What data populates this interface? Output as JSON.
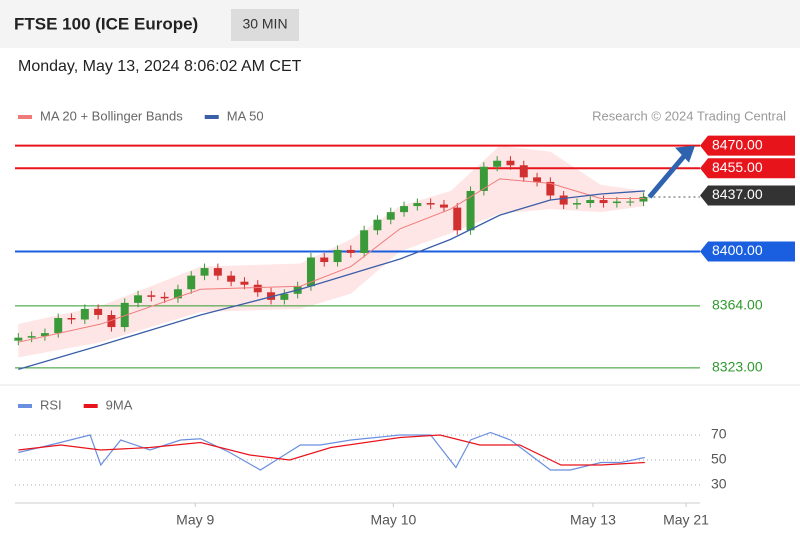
{
  "header": {
    "title": "FTSE 100 (ICE Europe)",
    "interval": "30 MIN",
    "datetime": "Monday, May 13, 2024 8:06:02 AM CET",
    "credit": "Research © 2024 Trading Central"
  },
  "chart_data": [
    {
      "type": "candlestick",
      "xlim": [
        -0.25,
        51.25
      ],
      "ylim": [
        8315,
        8477
      ],
      "up_color": "#3a9a3a",
      "down_color": "#d03030",
      "open": [
        8341,
        8343,
        8344,
        8346,
        8356,
        8355,
        8362,
        8358,
        8350,
        8366,
        8371,
        8370,
        8369,
        8375,
        8384,
        8389,
        8384,
        8380,
        8378,
        8373,
        8368,
        8372,
        8377,
        8396,
        8393,
        8401,
        8399,
        8414,
        8421,
        8426,
        8430,
        8432,
        8431,
        8429,
        8414,
        8440,
        8456,
        8460,
        8457,
        8449,
        8446,
        8437,
        8431,
        8432,
        8434,
        8432,
        8433,
        8433
      ],
      "high": [
        8346,
        8347,
        8349,
        8359,
        8359,
        8365,
        8365,
        8361,
        8369,
        8374,
        8374,
        8373,
        8378,
        8387,
        8392,
        8392,
        8387,
        8383,
        8381,
        8376,
        8375,
        8380,
        8399,
        8399,
        8404,
        8404,
        8417,
        8424,
        8429,
        8433,
        8435,
        8435,
        8434,
        8432,
        8443,
        8459,
        8463,
        8463,
        8460,
        8452,
        8449,
        8440,
        8435,
        8437,
        8437,
        8436,
        8436,
        8439
      ],
      "low": [
        8338,
        8340,
        8341,
        8343,
        8352,
        8352,
        8355,
        8347,
        8347,
        8363,
        8367,
        8366,
        8366,
        8372,
        8381,
        8381,
        8377,
        8375,
        8370,
        8365,
        8365,
        8369,
        8374,
        8390,
        8390,
        8396,
        8396,
        8411,
        8418,
        8423,
        8427,
        8428,
        8426,
        8411,
        8411,
        8437,
        8453,
        8454,
        8446,
        8443,
        8434,
        8428,
        8428,
        8429,
        8429,
        8429,
        8430,
        8430
      ],
      "close": [
        8343,
        8344,
        8346,
        8356,
        8355,
        8362,
        8358,
        8350,
        8366,
        8371,
        8370,
        8369,
        8375,
        8384,
        8389,
        8384,
        8380,
        8378,
        8373,
        8368,
        8372,
        8377,
        8396,
        8393,
        8401,
        8399,
        8414,
        8421,
        8426,
        8430,
        8432,
        8431,
        8429,
        8414,
        8440,
        8456,
        8460,
        8457,
        8449,
        8446,
        8437,
        8431,
        8432,
        8434,
        8432,
        8433,
        8433,
        8436
      ],
      "series": [
        {
          "name": "MA 20 + Bollinger Bands",
          "color": "#f07a7a",
          "band_color": "rgba(255,140,140,0.22)",
          "x": [
            0,
            6.2,
            13.7,
            21.2,
            25,
            28.7,
            32.5,
            36.2,
            40,
            43.8,
            47.1
          ],
          "values": [
            8340,
            8352,
            8375,
            8377,
            8390,
            8415,
            8428,
            8448,
            8445,
            8435,
            8435
          ],
          "upper": [
            8352,
            8364,
            8390,
            8392,
            8408,
            8430,
            8440,
            8470,
            8466,
            8444,
            8440
          ],
          "lower": [
            8330,
            8340,
            8360,
            8362,
            8372,
            8400,
            8412,
            8425,
            8428,
            8426,
            8430
          ]
        },
        {
          "name": "MA 50",
          "color": "#3b5ea8",
          "x": [
            0,
            6.2,
            13.7,
            21.2,
            28.7,
            32.5,
            36.2,
            40,
            43.8,
            47.1
          ],
          "values": [
            8322,
            8338,
            8358,
            8375,
            8395,
            8408,
            8424,
            8434,
            8438,
            8440
          ]
        }
      ],
      "levels": [
        {
          "value": 8470,
          "label": "8470.00",
          "color": "#e8141c",
          "box": true
        },
        {
          "value": 8455,
          "label": "8455.00",
          "color": "#e8141c",
          "box": true
        },
        {
          "value": 8437,
          "label": "8437.00",
          "color": "#333333",
          "box": true
        },
        {
          "value": 8400,
          "label": "8400.00",
          "color": "#1a5fe0",
          "box": true
        },
        {
          "value": 8364,
          "label": "8364.00",
          "color": "#2e9a2e",
          "box": false
        },
        {
          "value": 8323,
          "label": "8323.00",
          "color": "#2e9a2e",
          "box": false
        }
      ]
    },
    {
      "type": "line",
      "xlim": [
        -0.25,
        51.25
      ],
      "ylim": [
        18,
        102
      ],
      "yticks": [
        70,
        50,
        30
      ],
      "xticks": [
        {
          "value": 13.3,
          "label": "May 9"
        },
        {
          "value": 28.2,
          "label": "May 10"
        },
        {
          "value": 43.2,
          "label": "May 13"
        },
        {
          "value": 50.2,
          "label": "May 21"
        }
      ],
      "series": [
        {
          "name": "RSI",
          "color": "#6b8fe0",
          "x": [
            0,
            2.4,
            5.4,
            6.2,
            7.7,
            9.9,
            12.2,
            13.7,
            15.9,
            18.2,
            21.2,
            22.7,
            25,
            28.7,
            31,
            32.9,
            34,
            35.5,
            37,
            38.5,
            40,
            41.5,
            43.8,
            45.3,
            47.1
          ],
          "values": [
            56,
            62,
            70,
            46,
            66,
            58,
            66,
            67,
            56,
            42,
            62,
            62,
            66,
            70,
            70,
            44,
            66,
            72,
            66,
            54,
            42,
            42,
            48,
            48,
            52
          ]
        },
        {
          "name": "9MA",
          "color": "#e8141c",
          "x": [
            0,
            3.2,
            6.2,
            9.9,
            13.7,
            17.4,
            20.4,
            23.5,
            28.7,
            31.7,
            34.7,
            37.7,
            40.8,
            43.8,
            47.1
          ],
          "values": [
            58,
            62,
            58,
            60,
            64,
            54,
            50,
            60,
            68,
            70,
            62,
            62,
            46,
            46,
            48
          ]
        }
      ]
    }
  ]
}
